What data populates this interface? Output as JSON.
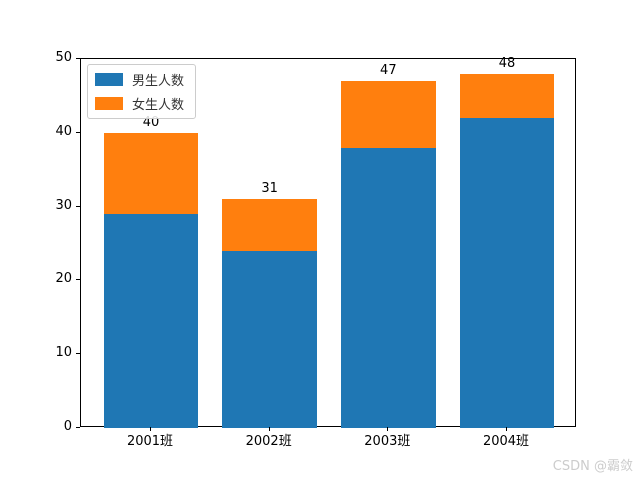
{
  "chart_data": {
    "type": "bar",
    "stacked": true,
    "title": "",
    "xlabel": "",
    "ylabel": "",
    "categories": [
      "2001班",
      "2002班",
      "2003班",
      "2004班"
    ],
    "series": [
      {
        "name": "男生人数",
        "color": "#1f77b4",
        "values": [
          29,
          24,
          38,
          42
        ]
      },
      {
        "name": "女生人数",
        "color": "#ff7f0e",
        "values": [
          11,
          7,
          9,
          6
        ]
      }
    ],
    "totals": [
      40,
      31,
      47,
      48
    ],
    "total_labels": [
      "40",
      "31",
      "47",
      "48"
    ],
    "ylim": [
      0,
      50
    ],
    "yticks": [
      0,
      10,
      20,
      30,
      40,
      50
    ],
    "bar_width_fraction": 0.8,
    "grid": false,
    "legend_position": "upper-left"
  },
  "legend": {
    "items": [
      {
        "label": "男生人数",
        "color": "#1f77b4"
      },
      {
        "label": "女生人数",
        "color": "#ff7f0e"
      }
    ]
  },
  "watermark": {
    "text": "CSDN @霸敛",
    "color": "#cccccc"
  },
  "colors": {
    "background": "#ffffff",
    "spine": "#000000",
    "text": "#000000"
  }
}
